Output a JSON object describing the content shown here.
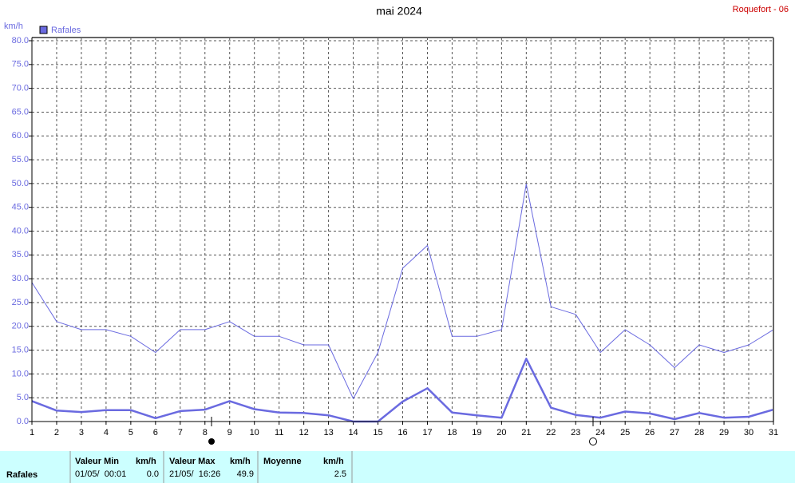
{
  "chart_data": {
    "type": "line",
    "title": "mai 2024",
    "station": "Roquefort - 06",
    "y_unit": "km/h",
    "categories": [
      "1",
      "2",
      "3",
      "4",
      "5",
      "6",
      "7",
      "8",
      "9",
      "10",
      "11",
      "12",
      "13",
      "14",
      "15",
      "16",
      "17",
      "18",
      "19",
      "20",
      "21",
      "22",
      "23",
      "24",
      "25",
      "26",
      "27",
      "28",
      "29",
      "30",
      "31"
    ],
    "series": [
      {
        "name": "Rafales",
        "color": "#6a6ae0",
        "values": [
          29.2,
          21.0,
          19.3,
          19.3,
          17.9,
          14.5,
          19.3,
          19.3,
          21.0,
          17.9,
          17.9,
          16.1,
          16.1,
          4.8,
          14.5,
          32.2,
          37.0,
          17.9,
          17.9,
          19.3,
          49.9,
          24.1,
          22.5,
          14.5,
          19.3,
          16.1,
          11.3,
          16.1,
          14.5,
          16.1,
          19.3
        ]
      },
      {
        "color": "#6a6ae0",
        "values": [
          4.3,
          2.3,
          2.0,
          2.4,
          2.4,
          0.7,
          2.2,
          2.5,
          4.3,
          2.6,
          1.9,
          1.8,
          1.3,
          0.0,
          0.0,
          4.2,
          7.0,
          1.9,
          1.3,
          0.8,
          13.2,
          2.9,
          1.4,
          0.8,
          2.1,
          1.7,
          0.5,
          1.8,
          0.8,
          1.0,
          2.5
        ]
      }
    ],
    "ylim": [
      0,
      80
    ],
    "yticks": [
      {
        "value": 0,
        "label": "0.0"
      },
      {
        "value": 5,
        "label": "5.0"
      },
      {
        "value": 10,
        "label": "10.0"
      },
      {
        "value": 15,
        "label": "15.0"
      },
      {
        "value": 20,
        "label": "20.0"
      },
      {
        "value": 25,
        "label": "25.0"
      },
      {
        "value": 30,
        "label": "30.0"
      },
      {
        "value": 35,
        "label": "35.0"
      },
      {
        "value": 40,
        "label": "40.0"
      },
      {
        "value": 45,
        "label": "45.0"
      },
      {
        "value": 50,
        "label": "50.0"
      },
      {
        "value": 55,
        "label": "55.0"
      },
      {
        "value": 60,
        "label": "60.0"
      },
      {
        "value": 65,
        "label": "65.0"
      },
      {
        "value": 70,
        "label": "70.0"
      },
      {
        "value": 75,
        "label": "75.0"
      },
      {
        "value": 80,
        "label": "80.0"
      }
    ],
    "grid": true
  },
  "footer": {
    "row_label": "Rafales",
    "min": {
      "header": "Valeur Min",
      "unit": "km/h",
      "date": "01/05/  00:01",
      "value": "0.0"
    },
    "max": {
      "header": "Valeur Max",
      "unit": "km/h",
      "date": "21/05/  16:26",
      "value": "49.9"
    },
    "mean": {
      "header": "Moyenne",
      "unit": "km/h",
      "value": "2.5"
    }
  }
}
